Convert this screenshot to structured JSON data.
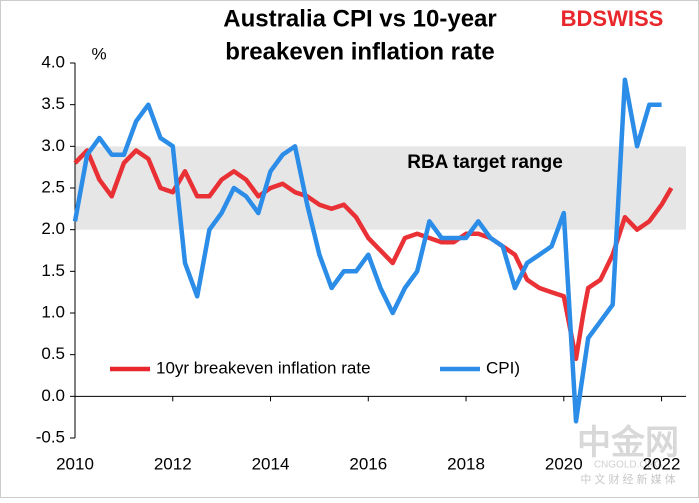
{
  "chart_data": {
    "type": "line",
    "title": [
      "Australia CPI vs 10-year",
      "breakeven inflation rate"
    ],
    "brand": "BDSWISS",
    "watermark": [
      "中金网",
      "CNGOLD.ORG",
      "中 文 财 经 新 媒 体"
    ],
    "y_label": "%",
    "xlim": [
      2010,
      2022.5
    ],
    "xticks": [
      2010,
      2012,
      2014,
      2016,
      2018,
      2020,
      2022
    ],
    "ylim": [
      -0.5,
      4
    ],
    "yticks": [
      {
        "value": 4,
        "label": "4.0"
      },
      3.5,
      {
        "value": 3,
        "label": "3.0"
      },
      2.5,
      {
        "value": 2,
        "label": "2.0"
      },
      1.5,
      {
        "value": 1,
        "label": "1.0"
      },
      0.5,
      {
        "value": 0,
        "label": "0.0"
      },
      -0.5
    ],
    "band": {
      "range": [
        2,
        3
      ],
      "label": "RBA target range",
      "color": "#e6e6e6"
    },
    "legend": "lower center",
    "series": [
      {
        "name": "10yr breakeven inflation rate",
        "color": "#e8262b",
        "x": [
          2010,
          2010.25,
          2010.5,
          2010.75,
          2011,
          2011.25,
          2011.5,
          2011.75,
          2012,
          2012.25,
          2012.5,
          2012.75,
          2013,
          2013.25,
          2013.5,
          2013.75,
          2014,
          2014.25,
          2014.5,
          2014.75,
          2015,
          2015.25,
          2015.5,
          2015.75,
          2016,
          2016.25,
          2016.5,
          2016.75,
          2017,
          2017.25,
          2017.5,
          2017.75,
          2018,
          2018.25,
          2018.5,
          2018.75,
          2019,
          2019.25,
          2019.5,
          2019.75,
          2020,
          2020.25,
          2020.4,
          2020.5,
          2020.75,
          2021,
          2021.25,
          2021.5,
          2021.75,
          2022,
          2022.2
        ],
        "values": [
          2.8,
          2.95,
          2.6,
          2.4,
          2.8,
          2.95,
          2.85,
          2.5,
          2.45,
          2.7,
          2.4,
          2.4,
          2.6,
          2.7,
          2.6,
          2.4,
          2.5,
          2.55,
          2.45,
          2.4,
          2.3,
          2.25,
          2.3,
          2.15,
          1.9,
          1.75,
          1.6,
          1.9,
          1.95,
          1.9,
          1.85,
          1.85,
          1.95,
          1.95,
          1.9,
          1.8,
          1.7,
          1.4,
          1.3,
          1.25,
          1.2,
          0.45,
          1.0,
          1.3,
          1.4,
          1.7,
          2.15,
          2.0,
          2.1,
          2.3,
          2.5
        ]
      },
      {
        "name": "CPI)",
        "color": "#2b8de8",
        "x": [
          2010,
          2010.25,
          2010.5,
          2010.75,
          2011,
          2011.25,
          2011.5,
          2011.75,
          2012,
          2012.25,
          2012.5,
          2012.75,
          2013,
          2013.25,
          2013.5,
          2013.75,
          2014,
          2014.25,
          2014.5,
          2014.75,
          2015,
          2015.25,
          2015.5,
          2015.75,
          2016,
          2016.25,
          2016.5,
          2016.75,
          2017,
          2017.25,
          2017.5,
          2017.75,
          2018,
          2018.25,
          2018.5,
          2018.75,
          2019,
          2019.25,
          2019.5,
          2019.75,
          2020,
          2020.25,
          2020.5,
          2020.75,
          2021,
          2021.25,
          2021.5,
          2021.75,
          2022
        ],
        "values": [
          2.1,
          2.9,
          3.1,
          2.9,
          2.9,
          3.3,
          3.5,
          3.1,
          3.0,
          1.6,
          1.2,
          2.0,
          2.2,
          2.5,
          2.4,
          2.2,
          2.7,
          2.9,
          3.0,
          2.3,
          1.7,
          1.3,
          1.5,
          1.5,
          1.7,
          1.3,
          1.0,
          1.3,
          1.5,
          2.1,
          1.9,
          1.9,
          1.9,
          2.1,
          1.9,
          1.8,
          1.3,
          1.6,
          1.7,
          1.8,
          2.2,
          -0.3,
          0.7,
          0.9,
          1.1,
          3.8,
          3.0,
          3.5,
          3.5
        ]
      }
    ]
  }
}
